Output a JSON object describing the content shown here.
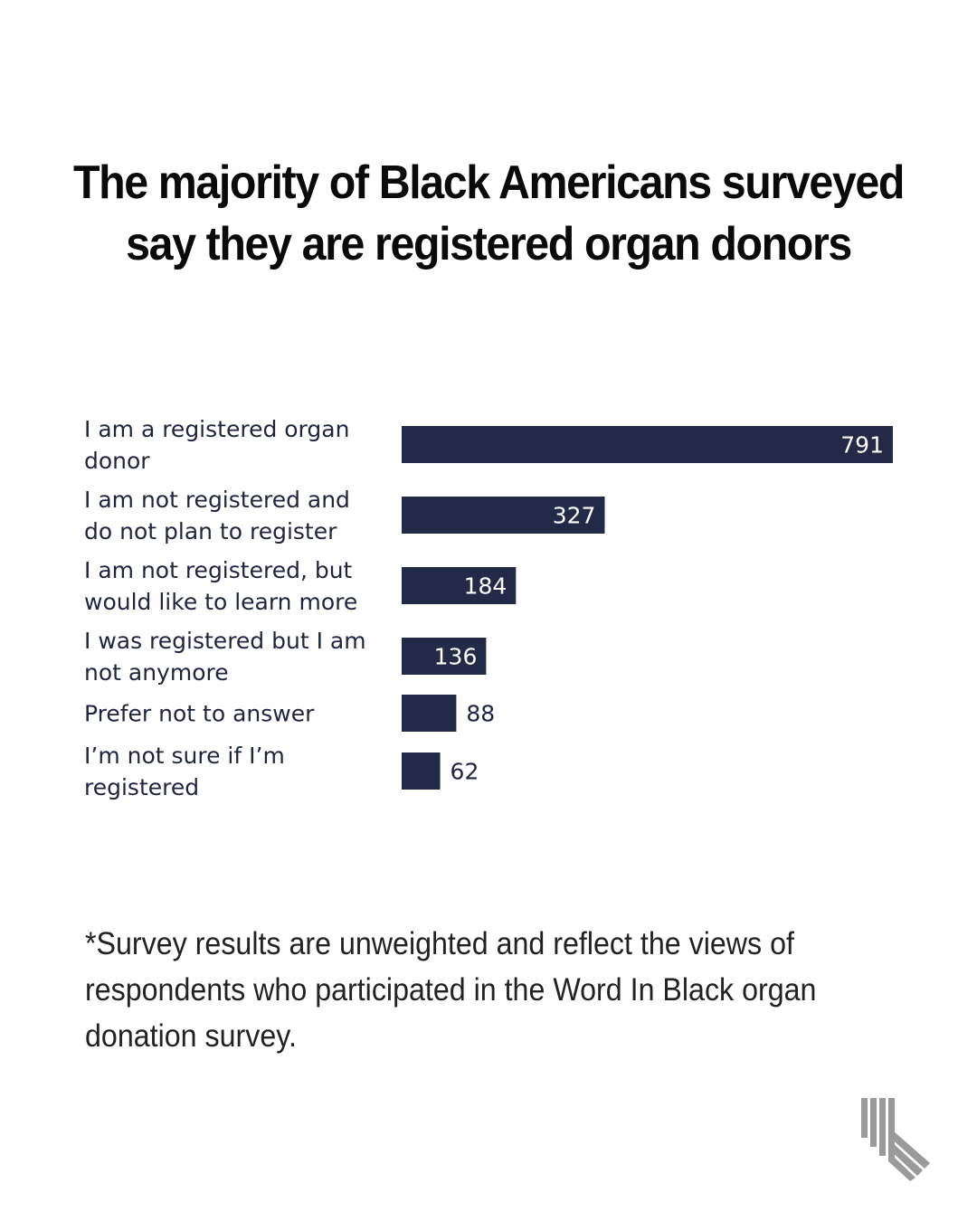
{
  "title": "The majority of Black Americans surveyed say they are registered organ donors",
  "footnote": "*Survey results are unweighted and reflect the views of respondents who participated in the Word In Black organ donation survey.",
  "colors": {
    "bar": "#232a48",
    "text": "#1f2540",
    "inside_label": "#ffffff",
    "outside_label": "#1f2540",
    "logo": "#9a9a9a"
  },
  "chart_data": {
    "type": "bar",
    "orientation": "horizontal",
    "title": "The majority of Black Americans surveyed say they are registered organ donors",
    "xlabel": "",
    "ylabel": "",
    "xlim": [
      0,
      791
    ],
    "grid": false,
    "categories": [
      [
        "I am a registered organ",
        "donor"
      ],
      [
        "I am not registered and",
        "do not plan to register"
      ],
      [
        "I am not registered, but",
        "would like to learn more"
      ],
      [
        "I was registered but I am",
        "not anymore"
      ],
      [
        "Prefer not to answer"
      ],
      [
        "I’m not sure if I’m",
        "registered"
      ]
    ],
    "values": [
      791,
      327,
      184,
      136,
      88,
      62
    ]
  }
}
